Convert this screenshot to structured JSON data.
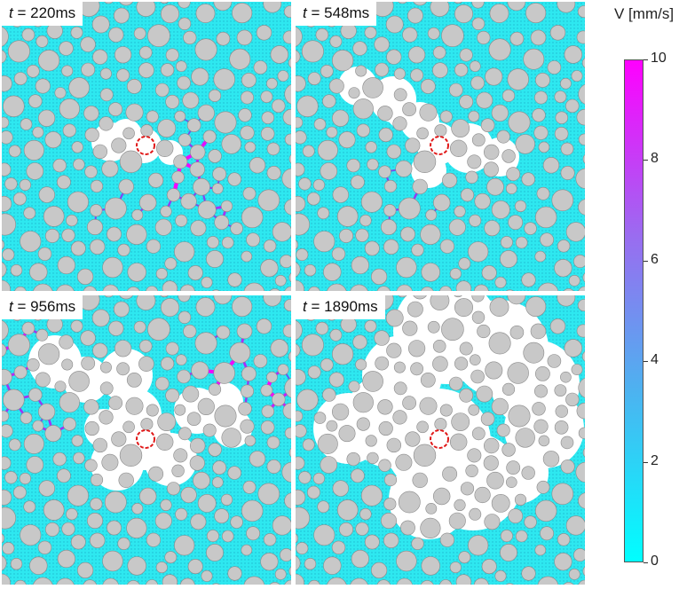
{
  "panels": [
    {
      "name": "panel-220ms",
      "label_var": "t",
      "label_value": "= 220ms"
    },
    {
      "name": "panel-548ms",
      "label_var": "t",
      "label_value": "= 548ms"
    },
    {
      "name": "panel-956ms",
      "label_var": "t",
      "label_value": "= 956ms"
    },
    {
      "name": "panel-1890ms",
      "label_var": "t",
      "label_value": "= 1890ms"
    }
  ],
  "colorbar": {
    "title": "V [mm/s]",
    "min": 0,
    "max": 10,
    "ticks": [
      "0",
      "2",
      "4",
      "6",
      "8",
      "10"
    ],
    "color_low": "#00ffff",
    "color_high": "#ff00ff"
  },
  "colors": {
    "fluid": "#2ee8f0",
    "fluid_dot": "#1fb9cf",
    "grain_fill": "#c8c8c8",
    "grain_stroke": "#8a8a8a",
    "injection_ring": "#e01818"
  }
}
